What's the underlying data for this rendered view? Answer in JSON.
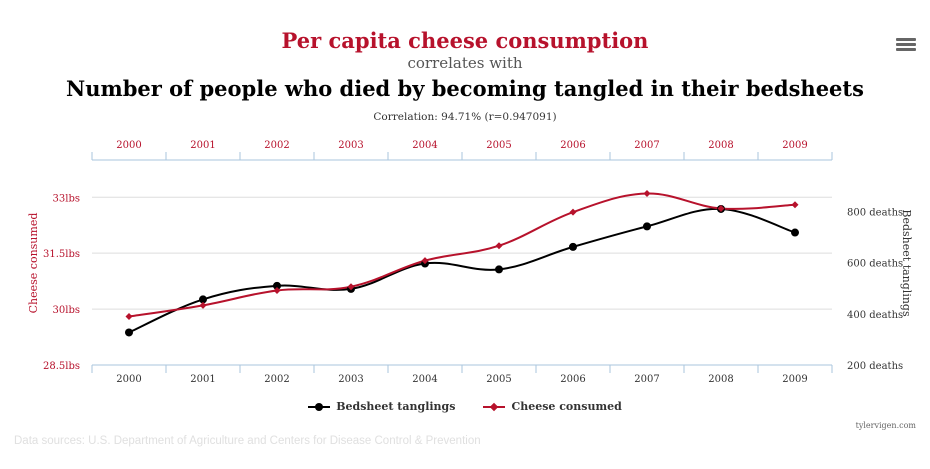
{
  "header": {
    "title": "Per capita cheese consumption",
    "connector": "correlates with",
    "subtitle": "Number of people who died by becoming tangled in their bedsheets",
    "correlation": "Correlation: 94.71% (r=0.947091)"
  },
  "menu_icon": "hamburger-menu-icon",
  "chart_data": {
    "type": "line",
    "x": [
      2000,
      2001,
      2002,
      2003,
      2004,
      2005,
      2006,
      2007,
      2008,
      2009
    ],
    "x_tick_labels": [
      "2000",
      "2001",
      "2002",
      "2003",
      "2004",
      "2005",
      "2006",
      "2007",
      "2008",
      "2009"
    ],
    "y_left": {
      "label": "Cheese consumed",
      "range": [
        28.5,
        34.0
      ],
      "ticks": [
        28.5,
        30,
        31.5,
        33
      ],
      "tick_labels": [
        "28.5lbs",
        "30lbs",
        "31.5lbs",
        "33lbs"
      ]
    },
    "y_right": {
      "label": "Bedsheet tanglings",
      "range": [
        200,
        1000
      ],
      "ticks": [
        200,
        400,
        600,
        800
      ],
      "tick_labels": [
        "200 deaths",
        "400 deaths",
        "600 deaths",
        "800 deaths"
      ]
    },
    "series": [
      {
        "name": "Bedsheet tanglings",
        "axis": "right",
        "color": "#000000",
        "marker": "circle",
        "values": [
          327,
          456,
          509,
          497,
          596,
          573,
          661,
          741,
          809,
          717
        ]
      },
      {
        "name": "Cheese consumed",
        "axis": "left",
        "color": "#b7122c",
        "marker": "diamond",
        "values": [
          29.8,
          30.1,
          30.5,
          30.6,
          31.3,
          31.7,
          32.6,
          33.1,
          32.7,
          32.8
        ]
      }
    ],
    "grid": true,
    "legend_position": "bottom-center"
  },
  "credit": "tylervigen.com",
  "sources": "Data sources: U.S. Department of Agriculture and Centers for Disease Control & Prevention",
  "colors": {
    "accent": "#b7122c",
    "black": "#000000",
    "grid": "#dddddd",
    "axis": "#aac6dd"
  }
}
